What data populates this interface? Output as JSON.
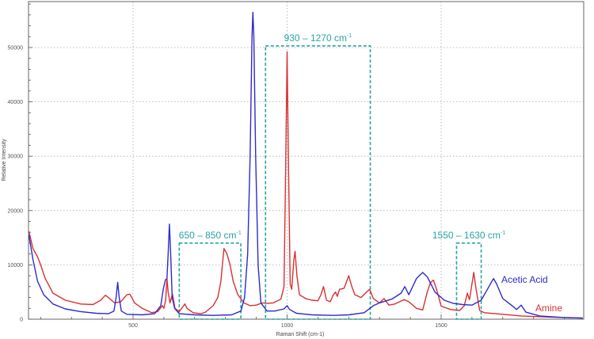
{
  "chart_data": {
    "type": "line",
    "title": "",
    "xlabel": "Raman Shift (cm-1)",
    "ylabel": "Relative Intensity",
    "xlim": [
      162,
      1960
    ],
    "ylim": [
      0,
      58000
    ],
    "grid": true,
    "x_ticks": [
      500,
      1000,
      1500
    ],
    "y_ticks": [
      0,
      10000,
      20000,
      30000,
      40000,
      50000
    ],
    "x_tick_labels": [
      "500",
      "1000",
      "1500"
    ],
    "y_tick_labels": [
      "0",
      "10000",
      "20000",
      "30000",
      "40000",
      "50000"
    ],
    "series": [
      {
        "name": "Acetic Acid",
        "color": "#2b2bd0",
        "points": [
          [
            162,
            15500
          ],
          [
            175,
            11000
          ],
          [
            190,
            7000
          ],
          [
            210,
            4500
          ],
          [
            240,
            2800
          ],
          [
            280,
            1900
          ],
          [
            330,
            1400
          ],
          [
            380,
            1100
          ],
          [
            420,
            1000
          ],
          [
            438,
            1500
          ],
          [
            445,
            4000
          ],
          [
            450,
            6800
          ],
          [
            455,
            4000
          ],
          [
            462,
            1500
          ],
          [
            480,
            900
          ],
          [
            530,
            800
          ],
          [
            570,
            1000
          ],
          [
            590,
            2500
          ],
          [
            598,
            5500
          ],
          [
            605,
            7200
          ],
          [
            610,
            7500
          ],
          [
            614,
            12000
          ],
          [
            618,
            17500
          ],
          [
            622,
            12000
          ],
          [
            627,
            4000
          ],
          [
            635,
            2000
          ],
          [
            650,
            1000
          ],
          [
            700,
            800
          ],
          [
            760,
            700
          ],
          [
            820,
            800
          ],
          [
            850,
            1500
          ],
          [
            862,
            4000
          ],
          [
            872,
            12000
          ],
          [
            880,
            30000
          ],
          [
            886,
            52000
          ],
          [
            889,
            56500
          ],
          [
            892,
            52000
          ],
          [
            898,
            30000
          ],
          [
            906,
            10000
          ],
          [
            915,
            3000
          ],
          [
            935,
            1500
          ],
          [
            960,
            1500
          ],
          [
            990,
            1900
          ],
          [
            1000,
            2500
          ],
          [
            1008,
            1800
          ],
          [
            1030,
            1100
          ],
          [
            1080,
            800
          ],
          [
            1150,
            700
          ],
          [
            1200,
            800
          ],
          [
            1250,
            1200
          ],
          [
            1280,
            2500
          ],
          [
            1300,
            3000
          ],
          [
            1340,
            3700
          ],
          [
            1370,
            4800
          ],
          [
            1382,
            6000
          ],
          [
            1395,
            4500
          ],
          [
            1420,
            7500
          ],
          [
            1440,
            8600
          ],
          [
            1455,
            7800
          ],
          [
            1480,
            5000
          ],
          [
            1510,
            3500
          ],
          [
            1540,
            2900
          ],
          [
            1570,
            2700
          ],
          [
            1600,
            2600
          ],
          [
            1630,
            3500
          ],
          [
            1650,
            5500
          ],
          [
            1670,
            7500
          ],
          [
            1680,
            6500
          ],
          [
            1700,
            3800
          ],
          [
            1730,
            2500
          ],
          [
            1745,
            1800
          ],
          [
            1760,
            2600
          ],
          [
            1775,
            1300
          ],
          [
            1820,
            600
          ],
          [
            1900,
            300
          ],
          [
            1960,
            200
          ]
        ]
      },
      {
        "name": "Amine",
        "color": "#d93030",
        "points": [
          [
            162,
            16200
          ],
          [
            175,
            13000
          ],
          [
            190,
            11500
          ],
          [
            200,
            10000
          ],
          [
            215,
            7500
          ],
          [
            240,
            4800
          ],
          [
            280,
            3500
          ],
          [
            330,
            2800
          ],
          [
            370,
            2700
          ],
          [
            395,
            3500
          ],
          [
            410,
            4400
          ],
          [
            420,
            4000
          ],
          [
            440,
            3000
          ],
          [
            460,
            3200
          ],
          [
            480,
            4500
          ],
          [
            490,
            4600
          ],
          [
            505,
            3000
          ],
          [
            530,
            2000
          ],
          [
            560,
            1200
          ],
          [
            580,
            1400
          ],
          [
            595,
            2500
          ],
          [
            600,
            2000
          ],
          [
            606,
            3500
          ],
          [
            610,
            7500
          ],
          [
            614,
            5000
          ],
          [
            620,
            3000
          ],
          [
            628,
            4600
          ],
          [
            636,
            2000
          ],
          [
            650,
            1400
          ],
          [
            668,
            2800
          ],
          [
            675,
            2000
          ],
          [
            695,
            1200
          ],
          [
            720,
            1000
          ],
          [
            735,
            1300
          ],
          [
            760,
            2500
          ],
          [
            775,
            4000
          ],
          [
            785,
            7000
          ],
          [
            790,
            10000
          ],
          [
            795,
            13000
          ],
          [
            805,
            12000
          ],
          [
            815,
            10000
          ],
          [
            825,
            7000
          ],
          [
            840,
            4500
          ],
          [
            860,
            3000
          ],
          [
            880,
            2500
          ],
          [
            900,
            2600
          ],
          [
            920,
            3000
          ],
          [
            935,
            2900
          ],
          [
            955,
            3000
          ],
          [
            980,
            3700
          ],
          [
            990,
            6000
          ],
          [
            996,
            30000
          ],
          [
            1000,
            49200
          ],
          [
            1004,
            30000
          ],
          [
            1010,
            6500
          ],
          [
            1015,
            5500
          ],
          [
            1022,
            11000
          ],
          [
            1026,
            12500
          ],
          [
            1032,
            8000
          ],
          [
            1040,
            4500
          ],
          [
            1060,
            3800
          ],
          [
            1080,
            3500
          ],
          [
            1100,
            3400
          ],
          [
            1110,
            4500
          ],
          [
            1118,
            6000
          ],
          [
            1128,
            3500
          ],
          [
            1140,
            3200
          ],
          [
            1150,
            4500
          ],
          [
            1157,
            5000
          ],
          [
            1163,
            4200
          ],
          [
            1170,
            5500
          ],
          [
            1185,
            5700
          ],
          [
            1200,
            8000
          ],
          [
            1210,
            6000
          ],
          [
            1220,
            4500
          ],
          [
            1240,
            4000
          ],
          [
            1258,
            5000
          ],
          [
            1268,
            5500
          ],
          [
            1280,
            3800
          ],
          [
            1300,
            3000
          ],
          [
            1315,
            3800
          ],
          [
            1330,
            2600
          ],
          [
            1350,
            2800
          ],
          [
            1380,
            3600
          ],
          [
            1395,
            3200
          ],
          [
            1420,
            2000
          ],
          [
            1440,
            1700
          ],
          [
            1455,
            5000
          ],
          [
            1465,
            6700
          ],
          [
            1475,
            7200
          ],
          [
            1485,
            5500
          ],
          [
            1500,
            2400
          ],
          [
            1530,
            1800
          ],
          [
            1560,
            1600
          ],
          [
            1575,
            2500
          ],
          [
            1585,
            4800
          ],
          [
            1592,
            3600
          ],
          [
            1600,
            6500
          ],
          [
            1606,
            8600
          ],
          [
            1612,
            6000
          ],
          [
            1625,
            1600
          ],
          [
            1640,
            1200
          ],
          [
            1700,
            900
          ],
          [
            1760,
            600
          ],
          [
            1850,
            400
          ],
          [
            1960,
            200
          ]
        ]
      }
    ],
    "annotations": [
      {
        "label_main": "650 – 850 cm",
        "label_sup": "-1",
        "x_range": [
          650,
          850
        ],
        "y_top": 14000
      },
      {
        "label_main": "930 – 1270 cm",
        "label_sup": "-1",
        "x_range": [
          930,
          1270
        ],
        "y_top": 50300
      },
      {
        "label_main": "1550 – 1630 cm",
        "label_sup": "-1",
        "x_range": [
          1550,
          1630
        ],
        "y_top": 14000
      }
    ],
    "series_labels": [
      {
        "text": "Acetic Acid",
        "x": 633,
        "y": 357,
        "color": "#2b2bd0"
      },
      {
        "text": "Amine",
        "x": 676,
        "y": 393,
        "color": "#d93030"
      }
    ],
    "region_color": "#2aa3a0"
  }
}
